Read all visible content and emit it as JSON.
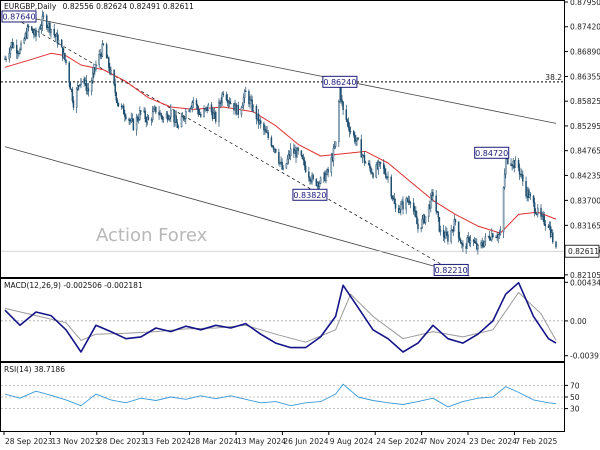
{
  "chart_data": {
    "type": "candlestick",
    "symbol": "EURGBP,Daily",
    "ohlc": "0.82556 0.82624 0.82491 0.82611",
    "watermark": "Action Forex",
    "last_price": 0.82611,
    "price_axis": {
      "range": [
        0.8208,
        0.8795
      ],
      "ticks": [
        "0.87950",
        "0.87685",
        "0.87420",
        "0.87155",
        "0.86890",
        "0.86620",
        "0.86355",
        "0.86090",
        "0.85825",
        "0.85560",
        "0.85295",
        "0.85030",
        "0.84765",
        "0.84500",
        "0.84235",
        "0.83965",
        "0.83700",
        "0.83435",
        "0.83165",
        "0.82900",
        "0.82635",
        "0.82370",
        "0.82105"
      ],
      "shown_ticks": [
        "0.87950",
        "0.87420",
        "0.86890",
        "0.86355",
        "0.85825",
        "0.85295",
        "0.84765",
        "0.84235",
        "0.83700",
        "0.83165",
        "0.82635",
        "0.82105"
      ]
    },
    "fib_level": {
      "label": "38.2",
      "value": 0.8624
    },
    "annotations": [
      {
        "label": "0.87640",
        "date": "2023-10-04",
        "price": 0.8764
      },
      {
        "label": "0.86240",
        "date": "2024-08-06",
        "price": 0.8624
      },
      {
        "label": "0.83820",
        "date": "2024-07-09",
        "price": 0.8382
      },
      {
        "label": "0.84720",
        "date": "2025-01-08",
        "price": 0.8472
      },
      {
        "label": "0.82210",
        "date": "2024-11-18",
        "price": 0.8221
      }
    ],
    "date_labels": [
      "28 Sep 2023",
      "13 Nov 2023",
      "28 Dec 2023",
      "13 Feb 2024",
      "28 Mar 2024",
      "13 May 2024",
      "26 Jun 2024",
      "9 Aug 2024",
      "24 Sep 2024",
      "7 Nov 2024",
      "23 Dec 2024",
      "7 Feb 2025"
    ],
    "date_range": [
      "2023-09-28",
      "2025-02-24"
    ],
    "price_path": [
      [
        "2023-09-28",
        0.8673
      ],
      [
        "2023-10-04",
        0.8705
      ],
      [
        "2023-10-12",
        0.869
      ],
      [
        "2023-10-20",
        0.874
      ],
      [
        "2023-10-27",
        0.8722
      ],
      [
        "2023-11-03",
        0.876
      ],
      [
        "2023-11-10",
        0.8738
      ],
      [
        "2023-11-17",
        0.871
      ],
      [
        "2023-11-24",
        0.8665
      ],
      [
        "2023-12-01",
        0.858
      ],
      [
        "2023-12-08",
        0.8635
      ],
      [
        "2023-12-15",
        0.8605
      ],
      [
        "2023-12-22",
        0.866
      ],
      [
        "2023-12-29",
        0.87
      ],
      [
        "2024-01-05",
        0.864
      ],
      [
        "2024-01-12",
        0.8575
      ],
      [
        "2024-01-19",
        0.8555
      ],
      [
        "2024-01-26",
        0.853
      ],
      [
        "2024-02-02",
        0.856
      ],
      [
        "2024-02-09",
        0.854
      ],
      [
        "2024-02-16",
        0.8565
      ],
      [
        "2024-02-23",
        0.8545
      ],
      [
        "2024-03-01",
        0.856
      ],
      [
        "2024-03-08",
        0.8525
      ],
      [
        "2024-03-15",
        0.856
      ],
      [
        "2024-03-22",
        0.8585
      ],
      [
        "2024-03-29",
        0.855
      ],
      [
        "2024-04-05",
        0.857
      ],
      [
        "2024-04-12",
        0.8545
      ],
      [
        "2024-04-19",
        0.8605
      ],
      [
        "2024-04-26",
        0.858
      ],
      [
        "2024-05-03",
        0.856
      ],
      [
        "2024-05-10",
        0.86
      ],
      [
        "2024-05-17",
        0.8565
      ],
      [
        "2024-05-24",
        0.853
      ],
      [
        "2024-05-31",
        0.8505
      ],
      [
        "2024-06-07",
        0.848
      ],
      [
        "2024-06-14",
        0.843
      ],
      [
        "2024-06-21",
        0.8475
      ],
      [
        "2024-06-28",
        0.847
      ],
      [
        "2024-07-05",
        0.844
      ],
      [
        "2024-07-12",
        0.841
      ],
      [
        "2024-07-19",
        0.841
      ],
      [
        "2024-07-26",
        0.843
      ],
      [
        "2024-08-02",
        0.849
      ],
      [
        "2024-08-06",
        0.861
      ],
      [
        "2024-08-09",
        0.856
      ],
      [
        "2024-08-16",
        0.852
      ],
      [
        "2024-08-23",
        0.849
      ],
      [
        "2024-08-30",
        0.845
      ],
      [
        "2024-09-06",
        0.843
      ],
      [
        "2024-09-13",
        0.8445
      ],
      [
        "2024-09-20",
        0.842
      ],
      [
        "2024-09-27",
        0.835
      ],
      [
        "2024-10-04",
        0.836
      ],
      [
        "2024-10-11",
        0.8375
      ],
      [
        "2024-10-18",
        0.831
      ],
      [
        "2024-10-25",
        0.8335
      ],
      [
        "2024-11-01",
        0.8385
      ],
      [
        "2024-11-08",
        0.83
      ],
      [
        "2024-11-15",
        0.829
      ],
      [
        "2024-11-22",
        0.8325
      ],
      [
        "2024-11-29",
        0.8265
      ],
      [
        "2024-12-06",
        0.829
      ],
      [
        "2024-12-13",
        0.8265
      ],
      [
        "2024-12-20",
        0.8285
      ],
      [
        "2024-12-27",
        0.83
      ],
      [
        "2025-01-03",
        0.8295
      ],
      [
        "2025-01-08",
        0.846
      ],
      [
        "2025-01-13",
        0.8455
      ],
      [
        "2025-01-20",
        0.844
      ],
      [
        "2025-01-27",
        0.839
      ],
      [
        "2025-02-03",
        0.836
      ],
      [
        "2025-02-10",
        0.833
      ],
      [
        "2025-02-17",
        0.832
      ],
      [
        "2025-02-24",
        0.8261
      ]
    ],
    "moving_average": [
      [
        "2023-09-28",
        0.8655
      ],
      [
        "2023-10-20",
        0.867
      ],
      [
        "2023-11-10",
        0.8685
      ],
      [
        "2023-11-24",
        0.868
      ],
      [
        "2023-12-08",
        0.866
      ],
      [
        "2023-12-29",
        0.865
      ],
      [
        "2024-01-19",
        0.8625
      ],
      [
        "2024-02-09",
        0.859
      ],
      [
        "2024-03-01",
        0.857
      ],
      [
        "2024-03-22",
        0.8565
      ],
      [
        "2024-04-19",
        0.857
      ],
      [
        "2024-05-17",
        0.856
      ],
      [
        "2024-06-07",
        0.853
      ],
      [
        "2024-06-28",
        0.849
      ],
      [
        "2024-07-19",
        0.8465
      ],
      [
        "2024-08-09",
        0.847
      ],
      [
        "2024-08-30",
        0.8475
      ],
      [
        "2024-09-20",
        0.845
      ],
      [
        "2024-10-11",
        0.841
      ],
      [
        "2024-11-01",
        0.837
      ],
      [
        "2024-11-22",
        0.834
      ],
      [
        "2024-12-13",
        0.8315
      ],
      [
        "2025-01-03",
        0.83
      ],
      [
        "2025-01-20",
        0.834
      ],
      [
        "2025-02-07",
        0.8345
      ],
      [
        "2025-02-24",
        0.833
      ]
    ],
    "channel_lines": [
      {
        "name": "upper",
        "from": [
          "2023-09-28",
          0.8772
        ],
        "to": [
          "2025-02-24",
          0.8535
        ]
      },
      {
        "name": "lower",
        "from": [
          "2023-09-28",
          0.8485
        ],
        "to": [
          "2024-12-05",
          0.8208
        ]
      },
      {
        "name": "dashed",
        "from": [
          "2023-10-04",
          0.8764
        ],
        "to": [
          "2024-11-18",
          0.8221
        ]
      }
    ],
    "macd": {
      "label": "MACD(12,26,9) -0.002506 -0.002181",
      "axis_ticks": [
        "0.004341",
        "0.00",
        "-0.003916"
      ],
      "range": [
        -0.0044,
        0.0046
      ],
      "macd_line": [
        [
          "2023-09-28",
          0.0012
        ],
        [
          "2023-10-12",
          -0.0005
        ],
        [
          "2023-10-27",
          0.001
        ],
        [
          "2023-11-10",
          0.0006
        ],
        [
          "2023-11-24",
          -0.001
        ],
        [
          "2023-12-08",
          -0.0035
        ],
        [
          "2023-12-22",
          -0.0005
        ],
        [
          "2024-01-05",
          -0.0012
        ],
        [
          "2024-01-19",
          -0.002
        ],
        [
          "2024-02-02",
          -0.0018
        ],
        [
          "2024-02-16",
          -0.0008
        ],
        [
          "2024-03-01",
          -0.0012
        ],
        [
          "2024-03-15",
          -0.0006
        ],
        [
          "2024-03-29",
          -0.001
        ],
        [
          "2024-04-12",
          -0.0005
        ],
        [
          "2024-04-26",
          -0.0008
        ],
        [
          "2024-05-10",
          -0.0003
        ],
        [
          "2024-05-24",
          -0.0015
        ],
        [
          "2024-06-07",
          -0.0025
        ],
        [
          "2024-06-21",
          -0.003
        ],
        [
          "2024-07-05",
          -0.003
        ],
        [
          "2024-07-19",
          -0.0018
        ],
        [
          "2024-08-02",
          0.0005
        ],
        [
          "2024-08-09",
          0.004
        ],
        [
          "2024-08-23",
          0.0015
        ],
        [
          "2024-09-06",
          -0.001
        ],
        [
          "2024-09-20",
          -0.002
        ],
        [
          "2024-10-04",
          -0.0035
        ],
        [
          "2024-10-18",
          -0.0025
        ],
        [
          "2024-11-01",
          -0.0005
        ],
        [
          "2024-11-15",
          -0.002
        ],
        [
          "2024-11-29",
          -0.0025
        ],
        [
          "2024-12-13",
          -0.0015
        ],
        [
          "2024-12-27",
          0.0
        ],
        [
          "2025-01-08",
          0.003
        ],
        [
          "2025-01-20",
          0.0043
        ],
        [
          "2025-02-03",
          0.0005
        ],
        [
          "2025-02-17",
          -0.002
        ],
        [
          "2025-02-24",
          -0.0025
        ]
      ],
      "signal_line": [
        [
          "2023-09-28",
          0.0014
        ],
        [
          "2023-10-27",
          0.0006
        ],
        [
          "2023-11-24",
          -0.0002
        ],
        [
          "2023-12-08",
          -0.0022
        ],
        [
          "2023-12-22",
          -0.0015
        ],
        [
          "2024-01-19",
          -0.0014
        ],
        [
          "2024-02-16",
          -0.0012
        ],
        [
          "2024-03-15",
          -0.0009
        ],
        [
          "2024-04-12",
          -0.0008
        ],
        [
          "2024-05-10",
          -0.0005
        ],
        [
          "2024-06-07",
          -0.0015
        ],
        [
          "2024-07-05",
          -0.0024
        ],
        [
          "2024-08-02",
          -0.001
        ],
        [
          "2024-08-16",
          0.003
        ],
        [
          "2024-09-06",
          0.0005
        ],
        [
          "2024-10-04",
          -0.002
        ],
        [
          "2024-11-01",
          -0.0012
        ],
        [
          "2024-11-29",
          -0.0018
        ],
        [
          "2024-12-27",
          -0.001
        ],
        [
          "2025-01-20",
          0.0032
        ],
        [
          "2025-02-10",
          0.0008
        ],
        [
          "2025-02-24",
          -0.0022
        ]
      ]
    },
    "rsi": {
      "label": "RSI(14) 38.7186",
      "axis_ticks": [
        "70",
        "50",
        "30"
      ],
      "levels": [
        70,
        50,
        30
      ],
      "range": [
        0,
        100
      ],
      "line": [
        [
          "2023-09-28",
          55
        ],
        [
          "2023-10-12",
          48
        ],
        [
          "2023-10-27",
          60
        ],
        [
          "2023-11-10",
          53
        ],
        [
          "2023-11-24",
          45
        ],
        [
          "2023-12-08",
          35
        ],
        [
          "2023-12-22",
          55
        ],
        [
          "2024-01-05",
          45
        ],
        [
          "2024-01-19",
          40
        ],
        [
          "2024-02-02",
          48
        ],
        [
          "2024-02-16",
          44
        ],
        [
          "2024-03-01",
          50
        ],
        [
          "2024-03-15",
          46
        ],
        [
          "2024-03-29",
          52
        ],
        [
          "2024-04-12",
          47
        ],
        [
          "2024-04-26",
          52
        ],
        [
          "2024-05-10",
          46
        ],
        [
          "2024-05-24",
          40
        ],
        [
          "2024-06-07",
          42
        ],
        [
          "2024-06-21",
          35
        ],
        [
          "2024-07-05",
          40
        ],
        [
          "2024-07-19",
          42
        ],
        [
          "2024-08-02",
          55
        ],
        [
          "2024-08-09",
          72
        ],
        [
          "2024-08-23",
          50
        ],
        [
          "2024-09-06",
          44
        ],
        [
          "2024-09-20",
          40
        ],
        [
          "2024-10-04",
          37
        ],
        [
          "2024-10-18",
          42
        ],
        [
          "2024-11-01",
          48
        ],
        [
          "2024-11-15",
          33
        ],
        [
          "2024-11-29",
          42
        ],
        [
          "2024-12-13",
          48
        ],
        [
          "2024-12-27",
          50
        ],
        [
          "2025-01-08",
          68
        ],
        [
          "2025-01-20",
          58
        ],
        [
          "2025-02-03",
          45
        ],
        [
          "2025-02-17",
          40
        ],
        [
          "2025-02-24",
          38.7
        ]
      ]
    },
    "colors": {
      "candles": "#1f4e6e",
      "moving_average": "#e03030",
      "channel": "#444444",
      "dashed": "#222222",
      "macd": "#14148a",
      "signal": "#9a9a9a",
      "rsi": "#3a9ad9",
      "annotation_border": "#1a1a7a"
    }
  }
}
